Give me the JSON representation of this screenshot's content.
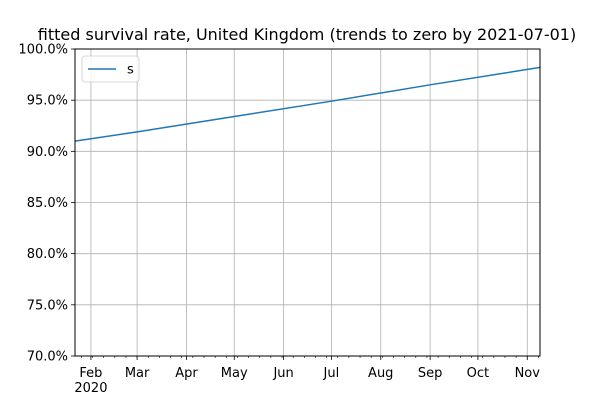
{
  "chart_data": {
    "type": "line",
    "title": "fitted survival rate, United Kingdom (trends to zero by 2021-07-01)",
    "xlabel": "",
    "ylabel": "",
    "xlim": [
      "2020-01-22",
      "2020-11-09"
    ],
    "ylim": [
      0.7,
      1.0
    ],
    "grid": true,
    "legend_position": "upper-left",
    "x_ticks": [
      {
        "date": "2020-02-01",
        "label": "Feb",
        "sublabel": "2020"
      },
      {
        "date": "2020-03-01",
        "label": "Mar"
      },
      {
        "date": "2020-04-01",
        "label": "Apr"
      },
      {
        "date": "2020-05-01",
        "label": "May"
      },
      {
        "date": "2020-06-01",
        "label": "Jun"
      },
      {
        "date": "2020-07-01",
        "label": "Jul"
      },
      {
        "date": "2020-08-01",
        "label": "Aug"
      },
      {
        "date": "2020-09-01",
        "label": "Sep"
      },
      {
        "date": "2020-10-01",
        "label": "Oct"
      },
      {
        "date": "2020-11-01",
        "label": "Nov"
      }
    ],
    "y_ticks": [
      {
        "value": 0.7,
        "label": "70.0%"
      },
      {
        "value": 0.75,
        "label": "75.0%"
      },
      {
        "value": 0.8,
        "label": "80.0%"
      },
      {
        "value": 0.85,
        "label": "85.0%"
      },
      {
        "value": 0.9,
        "label": "90.0%"
      },
      {
        "value": 0.95,
        "label": "95.0%"
      },
      {
        "value": 1.0,
        "label": "100.0%"
      }
    ],
    "series": [
      {
        "name": "s",
        "color": "#1f77b4",
        "x": [
          "2020-01-22",
          "2020-03-01",
          "2020-05-01",
          "2020-07-01",
          "2020-09-01",
          "2020-11-09"
        ],
        "y": [
          0.91,
          0.919,
          0.934,
          0.949,
          0.965,
          0.982
        ]
      }
    ]
  }
}
